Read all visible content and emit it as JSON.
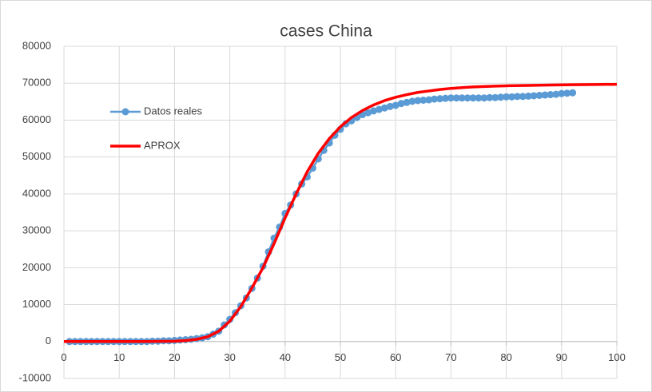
{
  "chart_data": {
    "type": "line",
    "title": "cases China",
    "xlim": [
      0,
      100
    ],
    "xticks": [
      0,
      10,
      20,
      30,
      40,
      50,
      60,
      70,
      80,
      90,
      100
    ],
    "ylim": [
      -10000,
      80000
    ],
    "yticks": [
      -10000,
      0,
      10000,
      20000,
      30000,
      40000,
      50000,
      60000,
      70000,
      80000
    ],
    "grid": true,
    "legend": "left",
    "series": [
      {
        "name": "Datos reales",
        "color": "#5b9bd5",
        "marker": true,
        "x": [
          1,
          2,
          3,
          4,
          5,
          6,
          7,
          8,
          9,
          10,
          11,
          12,
          13,
          14,
          15,
          16,
          17,
          18,
          19,
          20,
          21,
          22,
          23,
          24,
          25,
          26,
          27,
          28,
          29,
          30,
          31,
          32,
          33,
          34,
          35,
          36,
          37,
          38,
          39,
          40,
          41,
          42,
          43,
          44,
          45,
          46,
          47,
          48,
          49,
          50,
          51,
          52,
          53,
          54,
          55,
          56,
          57,
          58,
          59,
          60,
          61,
          62,
          63,
          64,
          65,
          66,
          67,
          68,
          69,
          70,
          71,
          72,
          73,
          74,
          75,
          76,
          77,
          78,
          79,
          80,
          81,
          82,
          83,
          84,
          85,
          86,
          87,
          88,
          89,
          90,
          91,
          92
        ],
        "values": [
          0,
          0,
          0,
          0,
          0,
          0,
          0,
          0,
          0,
          0,
          0,
          0,
          0,
          0,
          0,
          100,
          100,
          200,
          200,
          300,
          400,
          500,
          600,
          800,
          1000,
          1300,
          2000,
          2800,
          4500,
          6000,
          7800,
          9700,
          11800,
          14400,
          17200,
          20400,
          24300,
          28000,
          31000,
          34700,
          37000,
          40000,
          42700,
          44600,
          47000,
          49500,
          51800,
          53800,
          55900,
          57500,
          59000,
          59800,
          60700,
          61500,
          62000,
          62500,
          62900,
          63300,
          63700,
          64000,
          64500,
          64800,
          65100,
          65300,
          65400,
          65500,
          65700,
          65800,
          65900,
          66000,
          66000,
          66000,
          66000,
          66000,
          66000,
          66000,
          66100,
          66100,
          66200,
          66300,
          66300,
          66400,
          66400,
          66500,
          66600,
          66700,
          66800,
          66900,
          67000,
          67200,
          67300,
          67400
        ]
      },
      {
        "name": "APROX",
        "color": "#ff0000",
        "marker": false,
        "x": [
          0,
          5,
          10,
          15,
          18,
          20,
          22,
          24,
          26,
          28,
          30,
          32,
          34,
          36,
          38,
          40,
          42,
          44,
          46,
          48,
          50,
          52,
          54,
          56,
          58,
          60,
          62,
          64,
          66,
          68,
          70,
          72,
          74,
          76,
          78,
          80,
          84,
          88,
          92,
          96,
          100
        ],
        "values": [
          0,
          0,
          0,
          0,
          50,
          100,
          250,
          600,
          1300,
          2800,
          5500,
          9500,
          14500,
          20000,
          26500,
          33500,
          40000,
          46000,
          51000,
          55000,
          58200,
          60700,
          62600,
          64100,
          65300,
          66200,
          66900,
          67500,
          67900,
          68300,
          68600,
          68800,
          69000,
          69100,
          69200,
          69300,
          69400,
          69500,
          69600,
          69650,
          69700
        ]
      }
    ]
  }
}
